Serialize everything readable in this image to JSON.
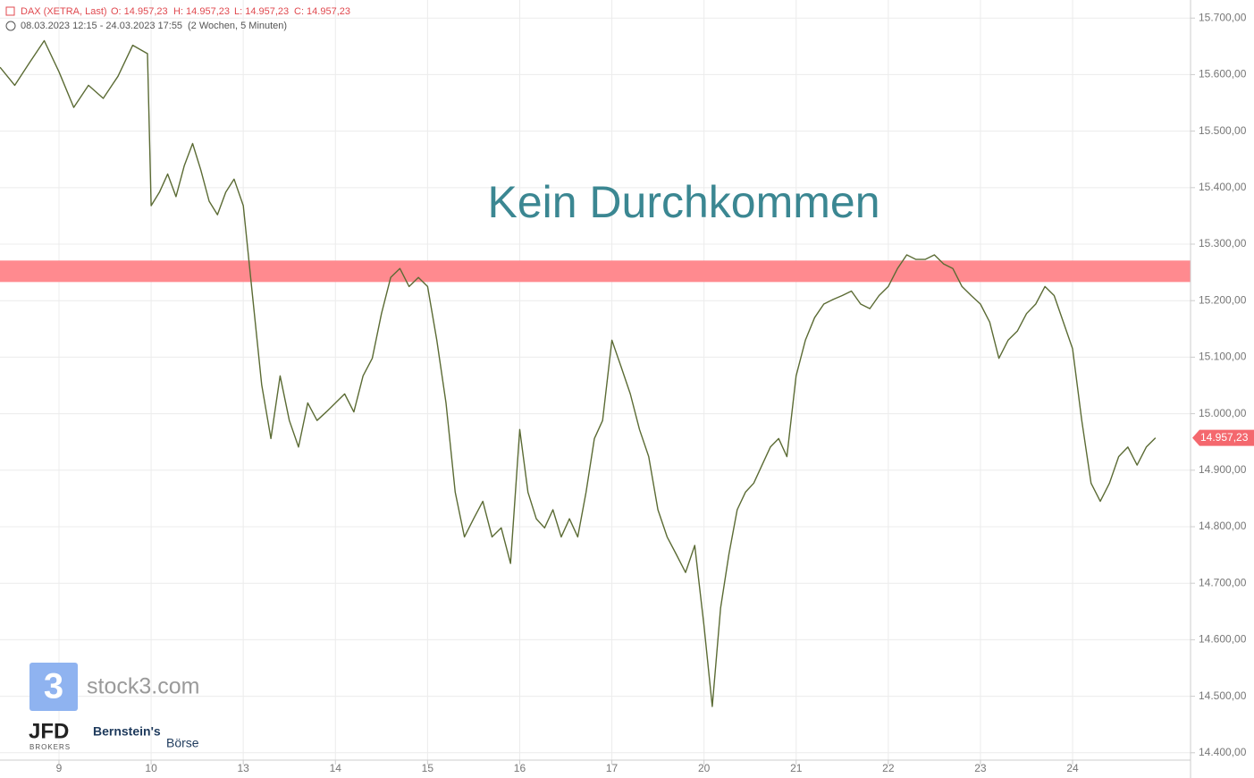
{
  "chart_data": {
    "type": "line",
    "title": "Kein Durchkommen",
    "header": {
      "instrument": "DAX (XETRA, Last)",
      "open": "O: 14.957,23",
      "high": "H: 14.957,23",
      "low": "L: 14.957,23",
      "close": "C: 14.957,23",
      "range": "08.03.2023 12:15 - 24.03.2023 17:55",
      "period": "(2 Wochen, 5 Minuten)"
    },
    "logos": {
      "stock3": "stock3.com",
      "jfd": "JFD",
      "jfd_sub": "BROKERS",
      "bernstein": "Bernstein's",
      "boerse": "Börse"
    },
    "series": [
      {
        "name": "DAX",
        "color": "#5b6b34",
        "x": [
          -0.64,
          -0.48,
          -0.32,
          -0.16,
          0,
          0.16,
          0.32,
          0.48,
          0.64,
          0.8,
          0.96,
          1,
          1.09,
          1.18,
          1.27,
          1.36,
          1.45,
          1.54,
          1.63,
          1.72,
          1.81,
          1.9,
          2,
          2.1,
          2.2,
          2.3,
          2.4,
          2.5,
          2.6,
          2.7,
          2.8,
          2.9,
          3,
          3.1,
          3.2,
          3.3,
          3.4,
          3.5,
          3.6,
          3.7,
          3.8,
          3.9,
          4,
          4.1,
          4.2,
          4.3,
          4.4,
          4.5,
          4.6,
          4.7,
          4.8,
          4.9,
          5,
          5.09,
          5.18,
          5.27,
          5.36,
          5.45,
          5.54,
          5.63,
          5.72,
          5.81,
          5.9,
          6,
          6.1,
          6.2,
          6.3,
          6.4,
          6.5,
          6.6,
          6.7,
          6.8,
          6.9,
          7,
          7.09,
          7.18,
          7.27,
          7.36,
          7.45,
          7.54,
          7.63,
          7.72,
          7.81,
          7.9,
          8,
          8.1,
          8.2,
          8.3,
          8.4,
          8.5,
          8.6,
          8.7,
          8.8,
          8.9,
          9,
          9.1,
          9.2,
          9.3,
          9.4,
          9.5,
          9.6,
          9.7,
          9.8,
          9.9,
          10,
          10.1,
          10.2,
          10.3,
          10.4,
          10.5,
          10.6,
          10.7,
          10.8,
          11,
          11.1,
          11.2,
          11.3,
          11.4,
          11.5,
          11.6,
          11.7,
          11.8,
          11.9
        ],
        "values": [
          15613,
          15581,
          15621,
          15660,
          15605,
          15542,
          15581,
          15558,
          15597,
          15652,
          15637,
          15368,
          15392,
          15424,
          15384,
          15439,
          15478,
          15431,
          15376,
          15352,
          15392,
          15415,
          15368,
          15209,
          15051,
          14956,
          15067,
          14988,
          14941,
          15019,
          14988,
          15003,
          15019,
          15035,
          15003,
          15067,
          15098,
          15177,
          15241,
          15257,
          15225,
          15241,
          15225,
          15130,
          15019,
          14861,
          14782,
          14814,
          14845,
          14782,
          14798,
          14735,
          14972,
          14861,
          14814,
          14798,
          14830,
          14782,
          14814,
          14782,
          14861,
          14956,
          14988,
          15130,
          15083,
          15035,
          14972,
          14924,
          14830,
          14782,
          14751,
          14719,
          14767,
          14624,
          14482,
          14656,
          14751,
          14830,
          14861,
          14877,
          14909,
          14941,
          14956,
          14924,
          15067,
          15130,
          15170,
          15194,
          15202,
          15209,
          15217,
          15194,
          15186,
          15209,
          15225,
          15257,
          15281,
          15273,
          15273,
          15281,
          15265,
          15257,
          15225,
          15209,
          15194,
          15162,
          15098,
          15130,
          15146,
          15177,
          15194,
          15225,
          15209,
          15115,
          14988,
          14877,
          14845,
          14877,
          14924,
          14941,
          14909,
          14941,
          14957.23
        ]
      }
    ],
    "resistance_band": [
      15233,
      15271
    ],
    "band_color": "#ff8a8f",
    "price_marker": {
      "value": 14957.23,
      "label": "14.957,23"
    },
    "marker_color": "#f4686e",
    "xlim": [
      -0.64,
      12.28
    ],
    "xticks": [
      {
        "value": 0,
        "label": "9"
      },
      {
        "value": 1,
        "label": "10"
      },
      {
        "value": 2,
        "label": "13"
      },
      {
        "value": 3,
        "label": "14"
      },
      {
        "value": 4,
        "label": "15"
      },
      {
        "value": 5,
        "label": "16"
      },
      {
        "value": 6,
        "label": "17"
      },
      {
        "value": 7,
        "label": "20"
      },
      {
        "value": 8,
        "label": "21"
      },
      {
        "value": 9,
        "label": "22"
      },
      {
        "value": 10,
        "label": "23"
      },
      {
        "value": 11,
        "label": "24"
      }
    ],
    "ylim": [
      14387,
      15732
    ],
    "yticks": [
      {
        "value": 14400,
        "label": "14.400,00"
      },
      {
        "value": 14500,
        "label": "14.500,00"
      },
      {
        "value": 14600,
        "label": "14.600,00"
      },
      {
        "value": 14700,
        "label": "14.700,00"
      },
      {
        "value": 14800,
        "label": "14.800,00"
      },
      {
        "value": 14900,
        "label": "14.900,00"
      },
      {
        "value": 15000,
        "label": "15.000,00"
      },
      {
        "value": 15100,
        "label": "15.100,00"
      },
      {
        "value": 15200,
        "label": "15.200,00"
      },
      {
        "value": 15300,
        "label": "15.300,00"
      },
      {
        "value": 15400,
        "label": "15.400,00"
      },
      {
        "value": 15500,
        "label": "15.500,00"
      },
      {
        "value": 15600,
        "label": "15.600,00"
      },
      {
        "value": 15700,
        "label": "15.700,00"
      }
    ],
    "grid": true
  }
}
